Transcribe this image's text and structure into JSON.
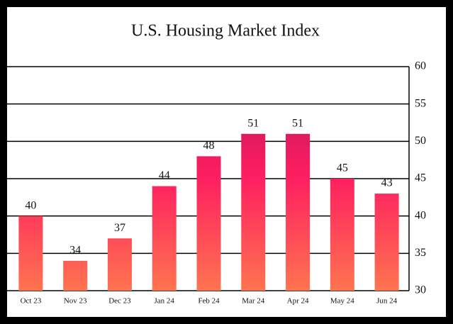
{
  "chart_data": {
    "type": "bar",
    "title": "U.S. Housing Market Index",
    "categories": [
      "Oct 23",
      "Nov 23",
      "Dec 23",
      "Jan 24",
      "Feb 24",
      "Mar 24",
      "Apr 24",
      "May 24",
      "Jun 24"
    ],
    "values": [
      40,
      34,
      37,
      44,
      48,
      51,
      51,
      45,
      43
    ],
    "gradient": [
      "#b5105a",
      "#ff1f60",
      "#ff7450"
    ],
    "ylim": [
      30,
      60
    ],
    "yticks": [
      30,
      35,
      40,
      45,
      50,
      55,
      60
    ],
    "grid": true,
    "y_axis_position": "right"
  }
}
